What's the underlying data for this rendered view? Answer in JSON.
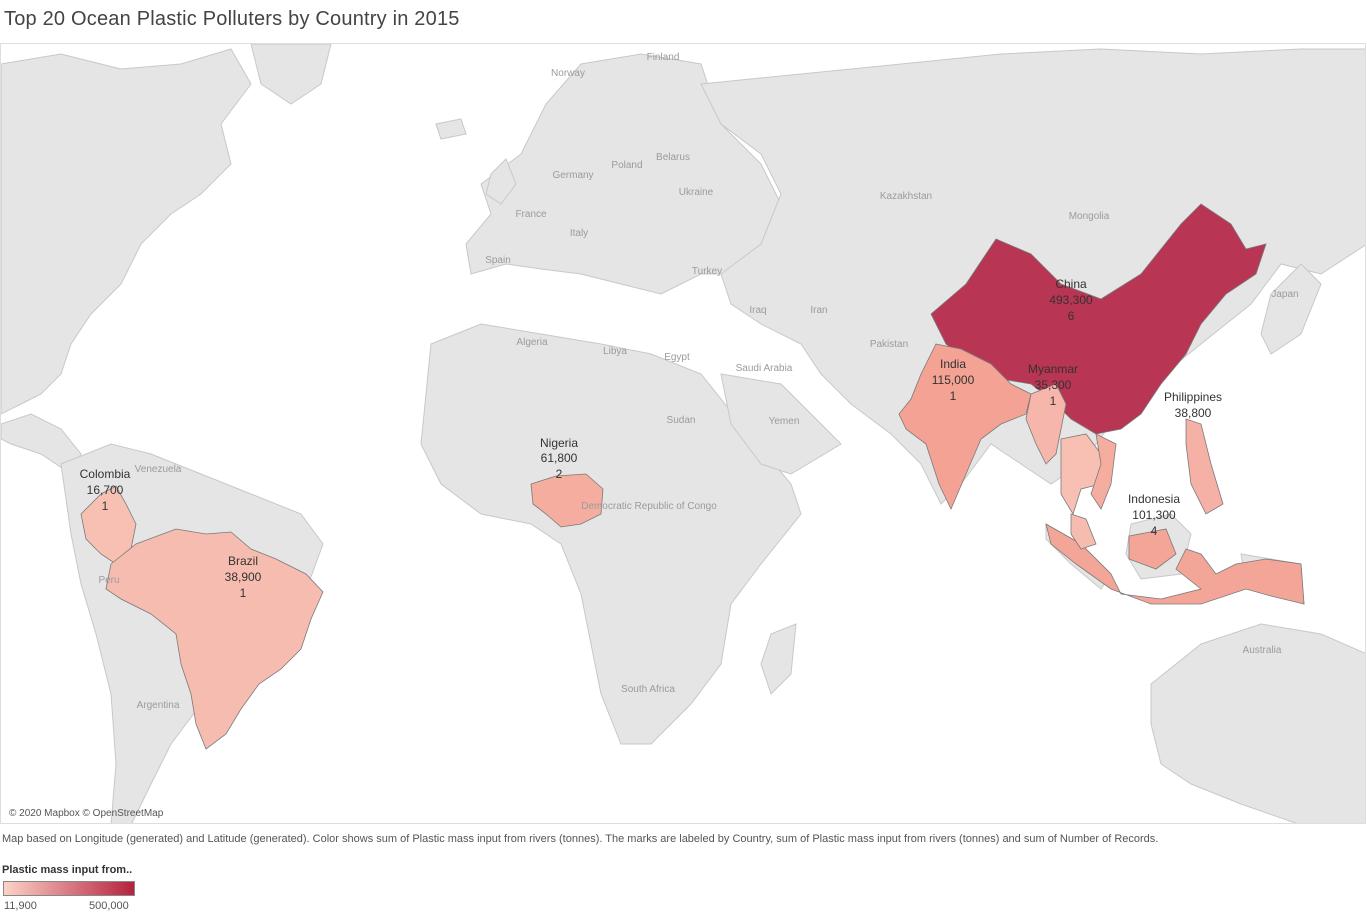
{
  "title": "Top 20 Ocean Plastic Polluters by Country in 2015",
  "map": {
    "attribution": "© 2020 Mapbox © OpenStreetMap",
    "land_color": "#e5e5e5",
    "border_color": "#c8c8c8",
    "geo_labels": [
      "Finland",
      "Norway",
      "Poland",
      "Belarus",
      "Germany",
      "Ukraine",
      "Kazakhstan",
      "Mongolia",
      "France",
      "Italy",
      "Spain",
      "Turkey",
      "Japan",
      "Iraq",
      "Iran",
      "Algeria",
      "Libya",
      "Egypt",
      "Pakistan",
      "Saudi Arabia",
      "Yemen",
      "Sudan",
      "Venezuela",
      "Democratic Republic of Congo",
      "Peru",
      "Argentina",
      "South Africa",
      "Australia"
    ],
    "countries": [
      {
        "country": "China",
        "value": "493,300",
        "records": "6",
        "color": "#b83553"
      },
      {
        "country": "India",
        "value": "115,000",
        "records": "1",
        "color": "#f3a294"
      },
      {
        "country": "Myanmar",
        "value": "35,300",
        "records": "1",
        "color": "#f6b6ab"
      },
      {
        "country": "Philippines",
        "value": "38,800",
        "records": "",
        "color": "#f5b1a5"
      },
      {
        "country": "Indonesia",
        "value": "101,300",
        "records": "4",
        "color": "#f3a597"
      },
      {
        "country": "Nigeria",
        "value": "61,800",
        "records": "2",
        "color": "#f4ad9f"
      },
      {
        "country": "Colombia",
        "value": "16,700",
        "records": "1",
        "color": "#f8c0b3"
      },
      {
        "country": "Brazil",
        "value": "38,900",
        "records": "1",
        "color": "#f7bcb0"
      }
    ]
  },
  "caption": "Map based on Longitude (generated) and Latitude (generated).  Color shows sum of Plastic mass input from rivers (tonnes).  The marks are labeled by Country, sum of Plastic mass input from rivers (tonnes) and sum of Number of Records.",
  "legend": {
    "title": "Plastic mass input from..",
    "min": "11,900",
    "max": "500,000",
    "color_min": "#fbd3c8",
    "color_max": "#b5223f"
  }
}
